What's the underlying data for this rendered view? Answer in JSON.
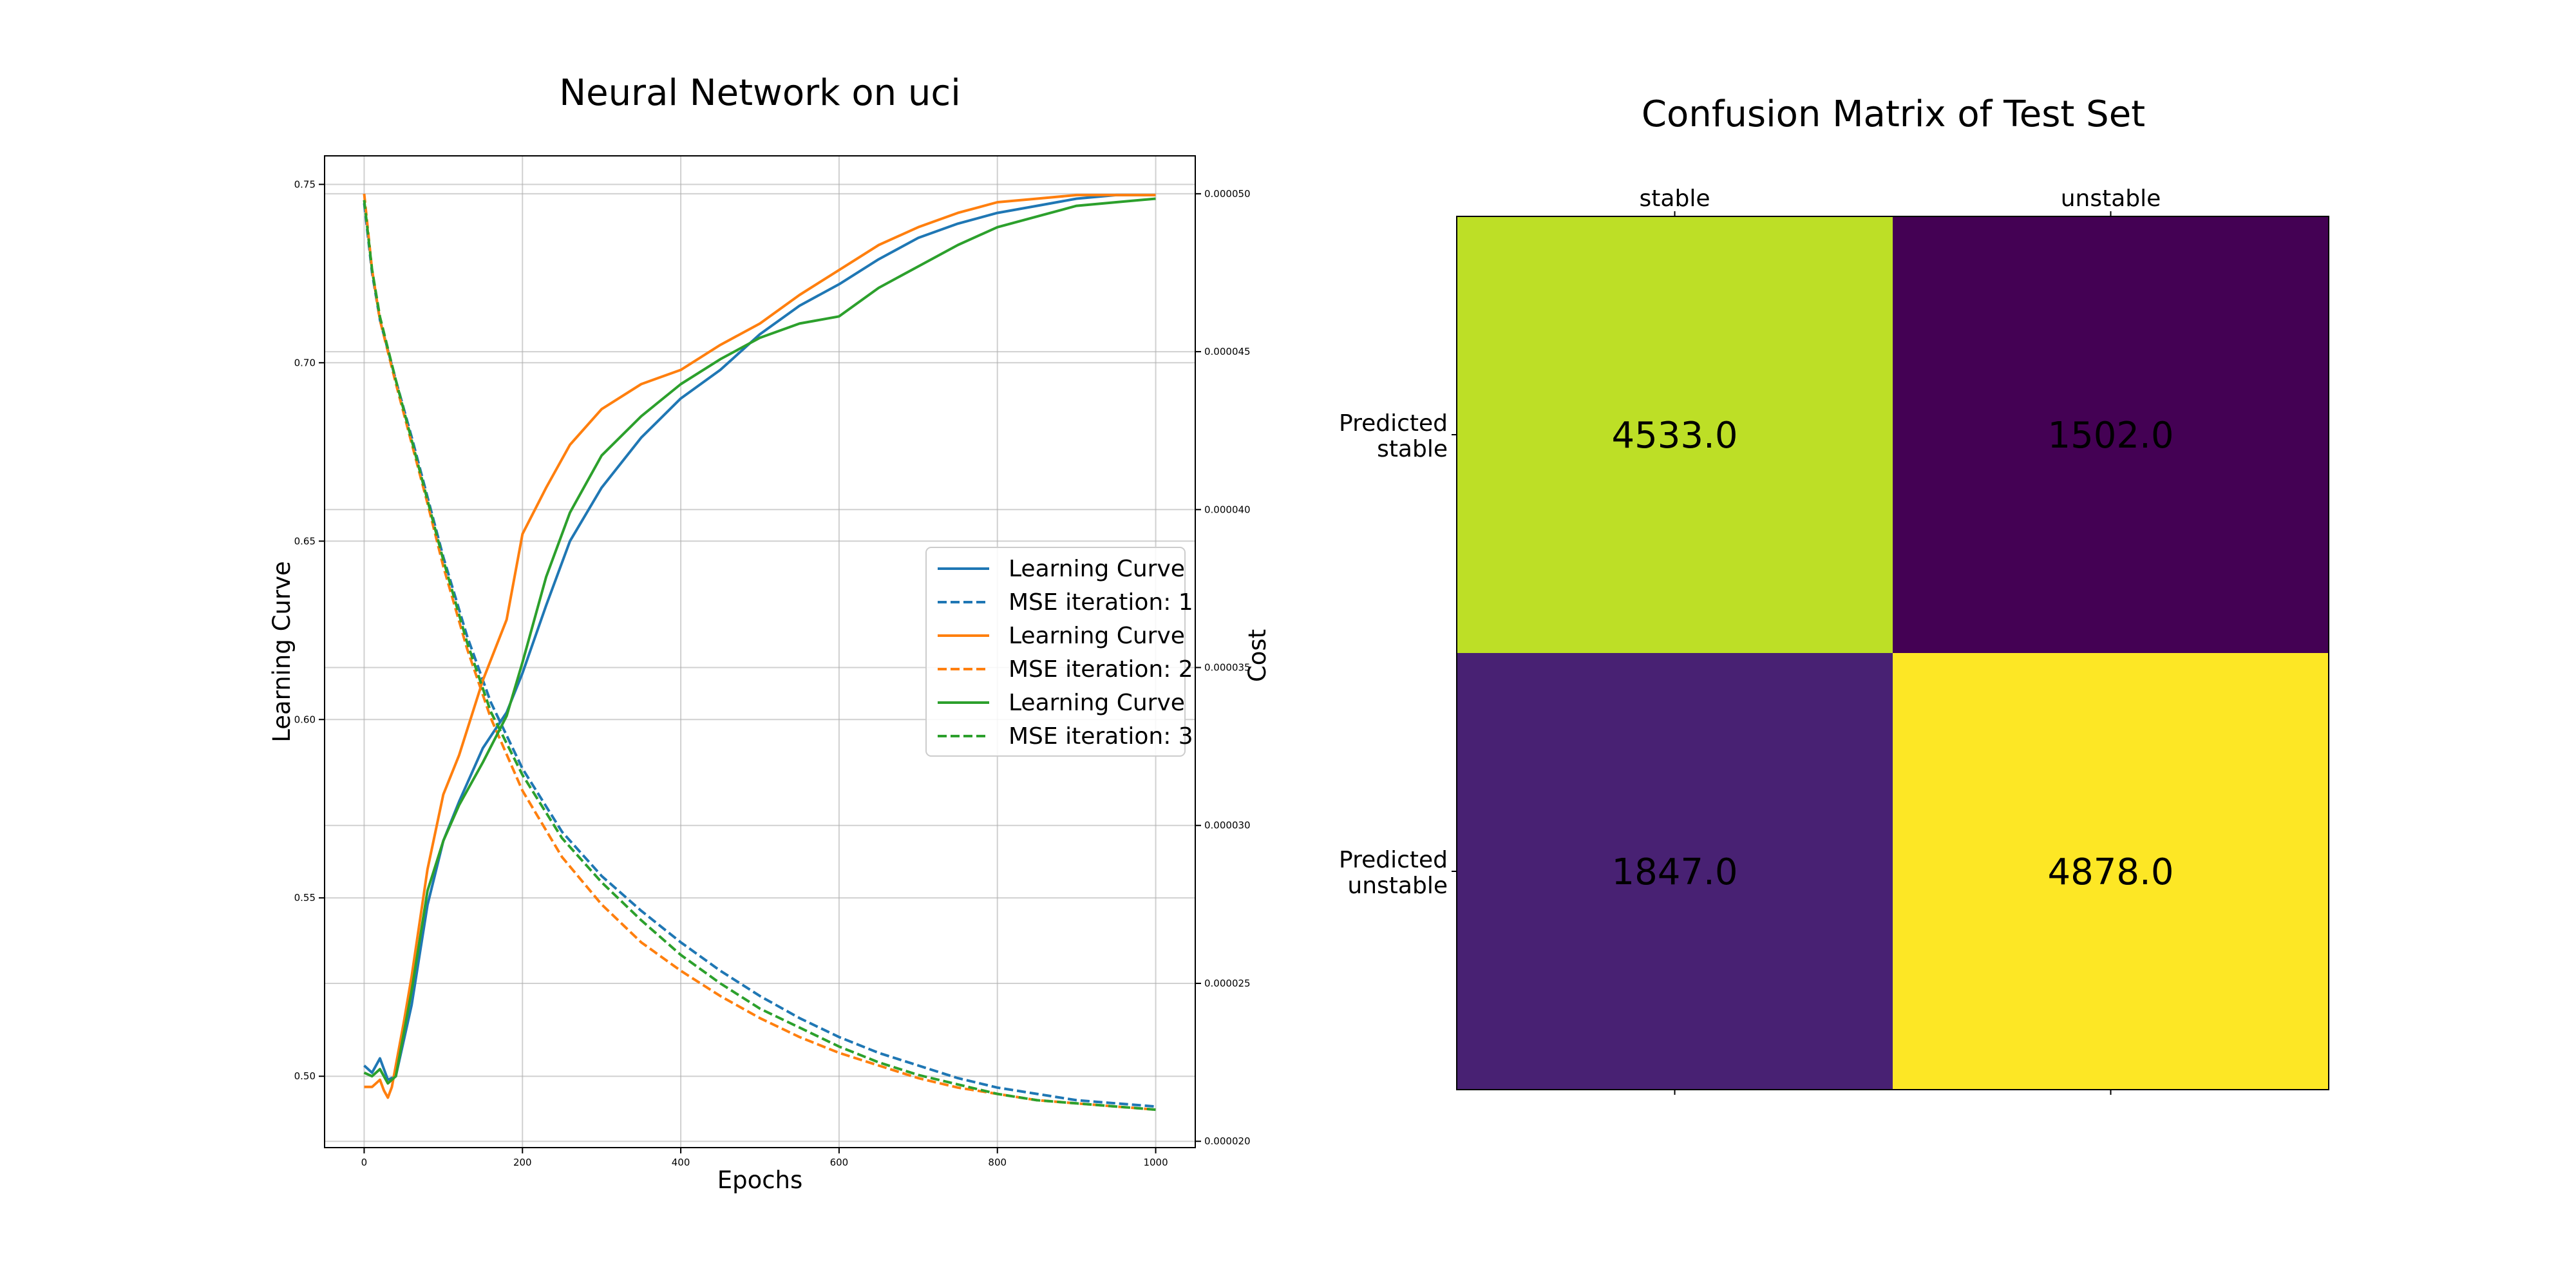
{
  "chart_data": [
    {
      "type": "line",
      "title": "Neural Network on uci",
      "xlabel": "Epochs",
      "ylabel": "Learning Curve",
      "ylabel_right": "Cost",
      "xlim": [
        -50,
        1050
      ],
      "ylim": [
        0.48,
        0.758
      ],
      "ylim_right": [
        1.98e-05,
        5.12e-05
      ],
      "xticks": [
        "0",
        "200",
        "400",
        "600",
        "800",
        "1000"
      ],
      "xtick_values": [
        0,
        200,
        400,
        600,
        800,
        1000
      ],
      "yticks": [
        "0.50",
        "0.55",
        "0.60",
        "0.65",
        "0.70",
        "0.75"
      ],
      "ytick_values": [
        0.5,
        0.55,
        0.6,
        0.65,
        0.7,
        0.75
      ],
      "yticks_right": [
        "0.000020",
        "0.000025",
        "0.000030",
        "0.000035",
        "0.000040",
        "0.000045",
        "0.000050"
      ],
      "ytick_values_right": [
        2e-05,
        2.5e-05,
        3e-05,
        3.5e-05,
        4e-05,
        4.5e-05,
        5e-05
      ],
      "grid": true,
      "legend_position": "center-right",
      "series": [
        {
          "name": "Learning Curve",
          "axis": "left",
          "style": "solid",
          "color": "#1f77b4",
          "x": [
            0,
            10,
            20,
            30,
            40,
            50,
            60,
            80,
            100,
            120,
            150,
            180,
            200,
            230,
            260,
            300,
            350,
            400,
            450,
            500,
            550,
            600,
            650,
            700,
            750,
            800,
            850,
            900,
            950,
            1000
          ],
          "y": [
            0.503,
            0.501,
            0.505,
            0.499,
            0.5,
            0.51,
            0.52,
            0.548,
            0.566,
            0.577,
            0.592,
            0.602,
            0.613,
            0.632,
            0.65,
            0.665,
            0.679,
            0.69,
            0.698,
            0.708,
            0.716,
            0.722,
            0.729,
            0.735,
            0.739,
            0.742,
            0.744,
            0.746,
            0.747,
            0.747
          ]
        },
        {
          "name": "MSE iteration: 1",
          "axis": "right",
          "style": "dashed",
          "color": "#1f77b4",
          "x": [
            0,
            10,
            20,
            40,
            60,
            80,
            100,
            130,
            160,
            200,
            250,
            300,
            350,
            400,
            450,
            500,
            550,
            600,
            650,
            700,
            750,
            800,
            850,
            900,
            950,
            1000
          ],
          "y": [
            4.97e-05,
            4.75e-05,
            4.6e-05,
            4.41e-05,
            4.23e-05,
            4.04e-05,
            3.85e-05,
            3.6e-05,
            3.39e-05,
            3.18e-05,
            2.98e-05,
            2.84e-05,
            2.73e-05,
            2.63e-05,
            2.54e-05,
            2.46e-05,
            2.39e-05,
            2.33e-05,
            2.28e-05,
            2.24e-05,
            2.2e-05,
            2.17e-05,
            2.15e-05,
            2.13e-05,
            2.12e-05,
            2.11e-05
          ]
        },
        {
          "name": "Learning Curve",
          "axis": "left",
          "style": "solid",
          "color": "#ff7f0e",
          "x": [
            0,
            10,
            20,
            25,
            30,
            35,
            40,
            50,
            60,
            80,
            100,
            120,
            150,
            180,
            200,
            230,
            260,
            300,
            350,
            400,
            450,
            500,
            550,
            600,
            650,
            700,
            750,
            800,
            850,
            900,
            950,
            1000
          ],
          "y": [
            0.497,
            0.497,
            0.499,
            0.496,
            0.494,
            0.497,
            0.503,
            0.515,
            0.528,
            0.558,
            0.579,
            0.59,
            0.611,
            0.628,
            0.652,
            0.665,
            0.677,
            0.687,
            0.694,
            0.698,
            0.705,
            0.711,
            0.719,
            0.726,
            0.733,
            0.738,
            0.742,
            0.745,
            0.746,
            0.747,
            0.747,
            0.747
          ]
        },
        {
          "name": "MSE iteration: 2",
          "axis": "right",
          "style": "dashed",
          "color": "#ff7f0e",
          "x": [
            0,
            10,
            20,
            40,
            60,
            80,
            100,
            130,
            160,
            200,
            250,
            300,
            350,
            400,
            450,
            500,
            550,
            600,
            650,
            700,
            750,
            800,
            850,
            900,
            950,
            1000
          ],
          "y": [
            5e-05,
            4.76e-05,
            4.6e-05,
            4.4e-05,
            4.21e-05,
            4.02e-05,
            3.82e-05,
            3.56e-05,
            3.34e-05,
            3.11e-05,
            2.9e-05,
            2.75e-05,
            2.63e-05,
            2.54e-05,
            2.46e-05,
            2.39e-05,
            2.33e-05,
            2.28e-05,
            2.24e-05,
            2.2e-05,
            2.17e-05,
            2.15e-05,
            2.13e-05,
            2.12e-05,
            2.11e-05,
            2.1e-05
          ]
        },
        {
          "name": "Learning Curve",
          "axis": "left",
          "style": "solid",
          "color": "#2ca02c",
          "x": [
            0,
            10,
            20,
            30,
            40,
            50,
            60,
            80,
            100,
            120,
            150,
            180,
            200,
            230,
            260,
            300,
            350,
            400,
            450,
            500,
            550,
            600,
            650,
            700,
            750,
            800,
            850,
            900,
            950,
            1000
          ],
          "y": [
            0.501,
            0.5,
            0.502,
            0.498,
            0.5,
            0.512,
            0.524,
            0.552,
            0.566,
            0.576,
            0.588,
            0.601,
            0.616,
            0.64,
            0.658,
            0.674,
            0.685,
            0.694,
            0.701,
            0.707,
            0.711,
            0.713,
            0.721,
            0.727,
            0.733,
            0.738,
            0.741,
            0.744,
            0.745,
            0.746
          ]
        },
        {
          "name": "MSE iteration: 3",
          "axis": "right",
          "style": "dashed",
          "color": "#2ca02c",
          "x": [
            0,
            10,
            20,
            40,
            60,
            80,
            100,
            130,
            160,
            200,
            250,
            300,
            350,
            400,
            450,
            500,
            550,
            600,
            650,
            700,
            750,
            800,
            850,
            900,
            950,
            1000
          ],
          "y": [
            4.98e-05,
            4.76e-05,
            4.61e-05,
            4.41e-05,
            4.22e-05,
            4.03e-05,
            3.84e-05,
            3.58e-05,
            3.36e-05,
            3.16e-05,
            2.96e-05,
            2.82e-05,
            2.7e-05,
            2.59e-05,
            2.5e-05,
            2.42e-05,
            2.36e-05,
            2.3e-05,
            2.25e-05,
            2.21e-05,
            2.18e-05,
            2.15e-05,
            2.13e-05,
            2.12e-05,
            2.11e-05,
            2.1e-05
          ]
        }
      ]
    },
    {
      "type": "heatmap",
      "title": "Confusion Matrix of Test Set",
      "columns": [
        "stable",
        "unstable"
      ],
      "rows": [
        [
          "Predicted",
          "stable"
        ],
        [
          "Predicted",
          "unstable"
        ]
      ],
      "values": [
        [
          4533.0,
          1502.0
        ],
        [
          1847.0,
          4878.0
        ]
      ],
      "labels": [
        [
          "4533.0",
          "1502.0"
        ],
        [
          "1847.0",
          "4878.0"
        ]
      ],
      "colors": [
        [
          "#bddf26",
          "#440154"
        ],
        [
          "#482173",
          "#fde725"
        ]
      ]
    }
  ]
}
